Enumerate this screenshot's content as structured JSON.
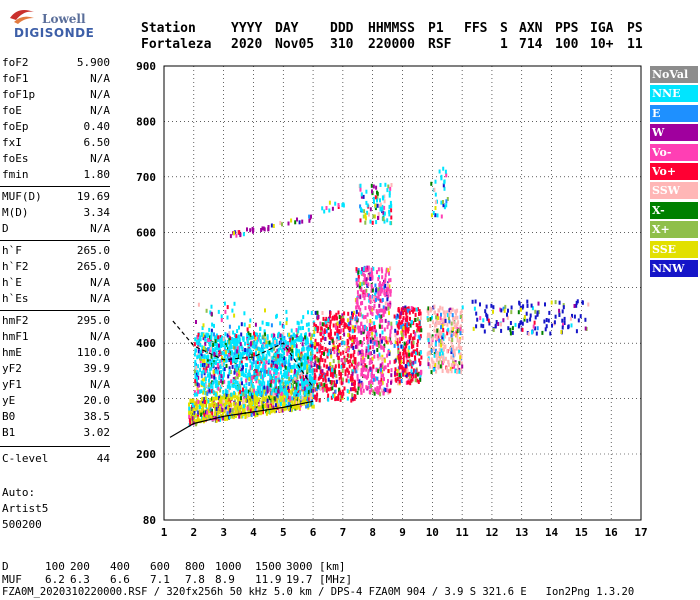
{
  "logo": {
    "line1": "Lowell",
    "line2": "DIGISONDE"
  },
  "header": {
    "labels": [
      "Station",
      "YYYY",
      "DAY",
      "DDD",
      "HHMMSS",
      "P1",
      "FFS",
      "S",
      "AXN",
      "PPS",
      "IGA",
      "PS"
    ],
    "values": [
      "Fortaleza",
      "2020",
      "Nov05",
      "310",
      "220000",
      "RSF",
      "1",
      "714",
      "100",
      "10+",
      "11"
    ]
  },
  "params": [
    {
      "name": "foF2",
      "value": "5.900"
    },
    {
      "name": "foF1",
      "value": "N/A"
    },
    {
      "name": "foF1p",
      "value": "N/A"
    },
    {
      "name": "foE",
      "value": "N/A"
    },
    {
      "name": "foEp",
      "value": "0.40"
    },
    {
      "name": "fxI",
      "value": "6.50"
    },
    {
      "name": "foEs",
      "value": "N/A"
    },
    {
      "name": "fmin",
      "value": "1.80"
    },
    {
      "name": "MUF(D)",
      "value": "19.69"
    },
    {
      "name": "M(D)",
      "value": "3.34"
    },
    {
      "name": "D",
      "value": "N/A"
    },
    {
      "name": "h`F",
      "value": "265.0"
    },
    {
      "name": "h`F2",
      "value": "265.0"
    },
    {
      "name": "h`E",
      "value": "N/A"
    },
    {
      "name": "h`Es",
      "value": "N/A"
    },
    {
      "name": "hmF2",
      "value": "295.0"
    },
    {
      "name": "hmF1",
      "value": "N/A"
    },
    {
      "name": "hmE",
      "value": "110.0"
    },
    {
      "name": "yF2",
      "value": "39.9"
    },
    {
      "name": "yF1",
      "value": "N/A"
    },
    {
      "name": "yE",
      "value": "20.0"
    },
    {
      "name": "B0",
      "value": "38.5"
    },
    {
      "name": "B1",
      "value": "3.02"
    },
    {
      "name": "C-level",
      "value": "44"
    }
  ],
  "autoscaling": {
    "line1": "Auto:",
    "line2": "Artist5",
    "line3": "500200"
  },
  "legend": [
    {
      "label": "NoVal",
      "color": "#8c8c8c"
    },
    {
      "label": "NNE",
      "color": "#00e5ff"
    },
    {
      "label": "E",
      "color": "#1e90ff"
    },
    {
      "label": "W",
      "color": "#a0009e"
    },
    {
      "label": "Vo-",
      "color": "#ff3fb4"
    },
    {
      "label": "Vo+",
      "color": "#ff0033"
    },
    {
      "label": "SSW",
      "color": "#ffb6b6"
    },
    {
      "label": "X-",
      "color": "#008000"
    },
    {
      "label": "X+",
      "color": "#8fbf4a"
    },
    {
      "label": "SSE",
      "color": "#e2e000"
    },
    {
      "label": "NNW",
      "color": "#1515c8"
    }
  ],
  "chart_data": {
    "type": "scatter",
    "xlabel": "",
    "ylabel": "",
    "xlim": [
      1,
      17
    ],
    "ylim": [
      80,
      900
    ],
    "x_ticks": [
      "1",
      "2",
      "3",
      "4",
      "5",
      "6",
      "7",
      "8",
      "9",
      "10",
      "11",
      "12",
      "13",
      "14",
      "15",
      "16",
      "17"
    ],
    "y_ticks": [
      "80",
      "200",
      "300",
      "400",
      "500",
      "600",
      "700",
      "800",
      "900"
    ],
    "clusters": [
      {
        "name": "low-band",
        "x": [
          1.8,
          6.0
        ],
        "y": [
          250,
          320
        ],
        "color": "#e2e000"
      },
      {
        "name": "main-F-trace",
        "x": [
          2.0,
          6.0
        ],
        "y": [
          320,
          470
        ],
        "color": "#00e5ff"
      },
      {
        "name": "mid-cluster",
        "x": [
          6.0,
          7.4
        ],
        "y": [
          300,
          460
        ],
        "color": "#ff0033"
      },
      {
        "name": "col-8",
        "x": [
          7.4,
          8.6
        ],
        "y": [
          310,
          540
        ],
        "color": "#ff3fb4"
      },
      {
        "name": "col-9",
        "x": [
          8.7,
          9.6
        ],
        "y": [
          330,
          470
        ],
        "color": "#ff0033"
      },
      {
        "name": "col-10",
        "x": [
          9.8,
          11.0
        ],
        "y": [
          350,
          470
        ],
        "color": "#ffb6b6"
      },
      {
        "name": "high-tail",
        "x": [
          11.2,
          15.2
        ],
        "y": [
          420,
          480
        ],
        "color": "#1515c8"
      },
      {
        "name": "echo-700",
        "x": [
          7.5,
          8.6
        ],
        "y": [
          620,
          690
        ],
        "color": "#00e5ff"
      },
      {
        "name": "echo-700b",
        "x": [
          9.9,
          10.5
        ],
        "y": [
          630,
          720
        ],
        "color": "#00e5ff"
      },
      {
        "name": "echo-600",
        "x": [
          3.2,
          5.9
        ],
        "y": [
          590,
          630
        ],
        "color": "#a0009e"
      },
      {
        "name": "echo-660",
        "x": [
          6.2,
          7.1
        ],
        "y": [
          640,
          660
        ],
        "color": "#00e5ff"
      }
    ],
    "profile_curve": {
      "x": [
        1.2,
        2,
        3,
        4,
        5,
        6
      ],
      "y": [
        230,
        255,
        268,
        276,
        284,
        295
      ]
    },
    "profile_dashed": {
      "x": [
        1.3,
        2,
        3,
        4,
        5,
        6
      ],
      "y": [
        440,
        395,
        370,
        375,
        400,
        320
      ]
    }
  },
  "bottom": {
    "d_label": "D",
    "d_values": [
      "100",
      "200",
      "400",
      "600",
      "800",
      "1000",
      "1500",
      "3000"
    ],
    "d_unit": "[km]",
    "muf_label": "MUF",
    "muf_values": [
      "6.2",
      "6.3",
      "6.6",
      "7.1",
      "7.8",
      "8.9",
      "11.9",
      "19.7"
    ],
    "muf_unit": "[MHz]",
    "footer": "FZA0M_2020310220000.RSF / 320fx256h 50 kHz 5.0 km / DPS-4 FZA0M 904 / 3.9 S 321.6 E   Ion2Png 1.3.20"
  }
}
